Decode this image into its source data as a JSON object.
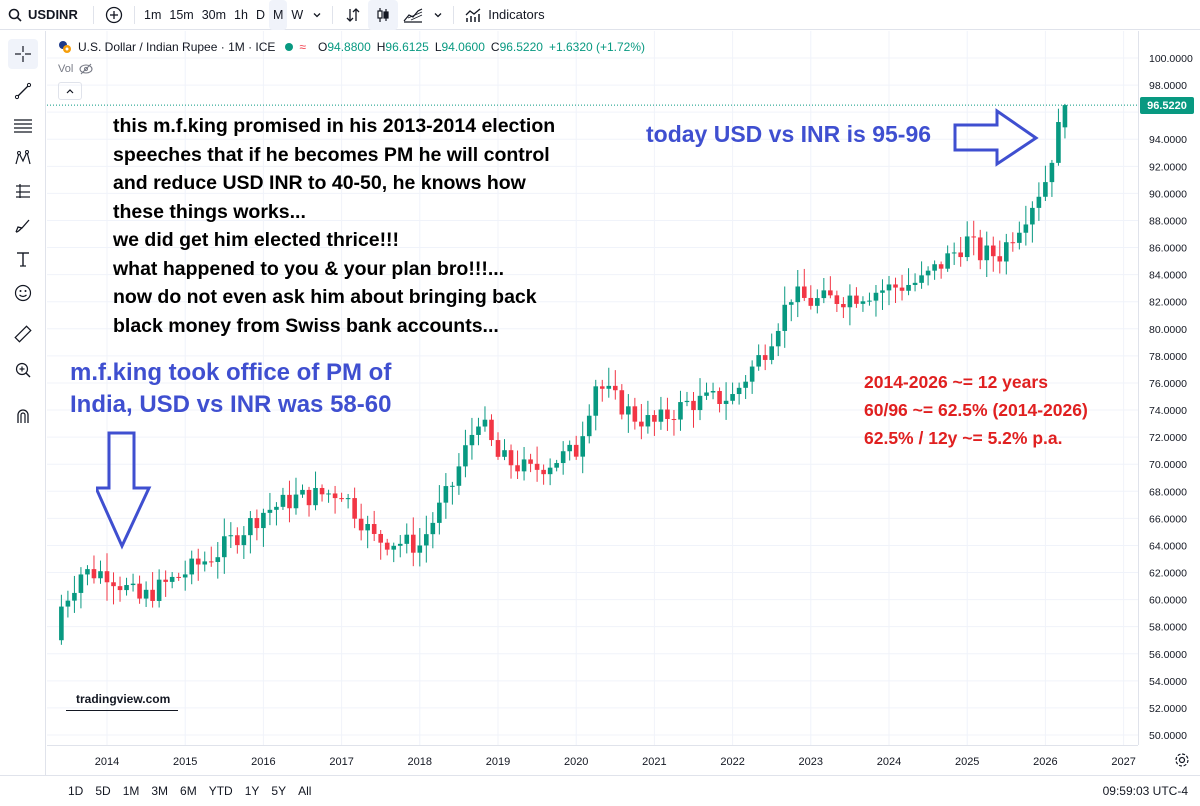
{
  "toolbar": {
    "symbol": "USDINR",
    "intervals": [
      "1m",
      "15m",
      "30m",
      "1h",
      "D",
      "M",
      "W"
    ],
    "active_interval": "M",
    "indicators_label": "Indicators"
  },
  "legend": {
    "title": "U.S. Dollar / Indian Rupee · 1M · ICE",
    "open_label": "O",
    "open": "94.8800",
    "high_label": "H",
    "high": "96.6125",
    "low_label": "L",
    "low": "94.0600",
    "close_label": "C",
    "close": "96.5220",
    "change": "+1.6320 (+1.72%)",
    "vol_label": "Vol"
  },
  "annotations": {
    "black_lines": [
      "this m.f.king promised in his 2013-2014 election",
      "speeches that if he becomes PM he will control",
      "and reduce USD INR to 40-50, he knows how",
      "these things works...",
      "we did get him elected thrice!!!",
      "what happened to you & your plan bro!!!...",
      "now do not even ask him about bringing back",
      "black money from Swiss bank accounts..."
    ],
    "blue_left": [
      "m.f.king took office of PM of",
      "India, USD vs INR was 58-60"
    ],
    "blue_right": "today USD vs INR is 95-96",
    "red_lines": [
      "2014-2026 ~= 12 years",
      "60/96 ~= 62.5% (2014-2026)",
      "62.5% / 12y ~= 5.2% p.a."
    ]
  },
  "watermark": "tradingview.com",
  "price_axis": {
    "ticks": [
      "100.0000",
      "98.0000",
      "96.0000",
      "94.0000",
      "92.0000",
      "90.0000",
      "88.0000",
      "86.0000",
      "84.0000",
      "82.0000",
      "80.0000",
      "78.0000",
      "76.0000",
      "74.0000",
      "72.0000",
      "70.0000",
      "68.0000",
      "66.0000",
      "64.0000",
      "62.0000",
      "60.0000",
      "58.0000",
      "56.0000",
      "54.0000",
      "52.0000",
      "50.0000"
    ],
    "last_price": "96.5220"
  },
  "time_axis": {
    "ticks": [
      "2014",
      "2015",
      "2016",
      "2017",
      "2018",
      "2019",
      "2020",
      "2021",
      "2022",
      "2023",
      "2024",
      "2025",
      "2026",
      "2027"
    ]
  },
  "bottombar": {
    "ranges": [
      "1D",
      "5D",
      "1M",
      "3M",
      "6M",
      "YTD",
      "1Y",
      "5Y",
      "All"
    ],
    "clock": "09:59:03 UTC-4"
  },
  "colors": {
    "up": "#089981",
    "down": "#f23645",
    "annotation_blue": "#3f4fd0",
    "annotation_red": "#e02020"
  },
  "chart_data": {
    "type": "line",
    "x": [
      "2013-06",
      "2013-09",
      "2014-01",
      "2014-06",
      "2015-01",
      "2015-06",
      "2016-01",
      "2016-06",
      "2017-01",
      "2017-06",
      "2018-01",
      "2018-06",
      "2018-10",
      "2019-01",
      "2019-06",
      "2020-01",
      "2020-04",
      "2020-10",
      "2021-01",
      "2021-06",
      "2022-01",
      "2022-06",
      "2022-10",
      "2023-01",
      "2023-06",
      "2024-01",
      "2024-06",
      "2025-01",
      "2025-03",
      "2025-06",
      "2025-10",
      "2026-01",
      "2026-04"
    ],
    "series": [
      {
        "values": [
          59.5,
          62.0,
          62.0,
          60.0,
          62.0,
          63.5,
          66.5,
          67.5,
          68.0,
          64.5,
          64.0,
          68.5,
          73.5,
          70.5,
          69.5,
          71.0,
          76.0,
          73.5,
          73.0,
          74.5,
          75.0,
          78.5,
          82.5,
          82.0,
          82.3,
          83.0,
          83.5,
          86.5,
          85.5,
          85.5,
          88.5,
          91.0,
          96.522
        ]
      }
    ],
    "ylim": [
      49,
      100.5
    ],
    "xlim": [
      "2013-04",
      "2027-03"
    ],
    "last_price": 96.522
  }
}
